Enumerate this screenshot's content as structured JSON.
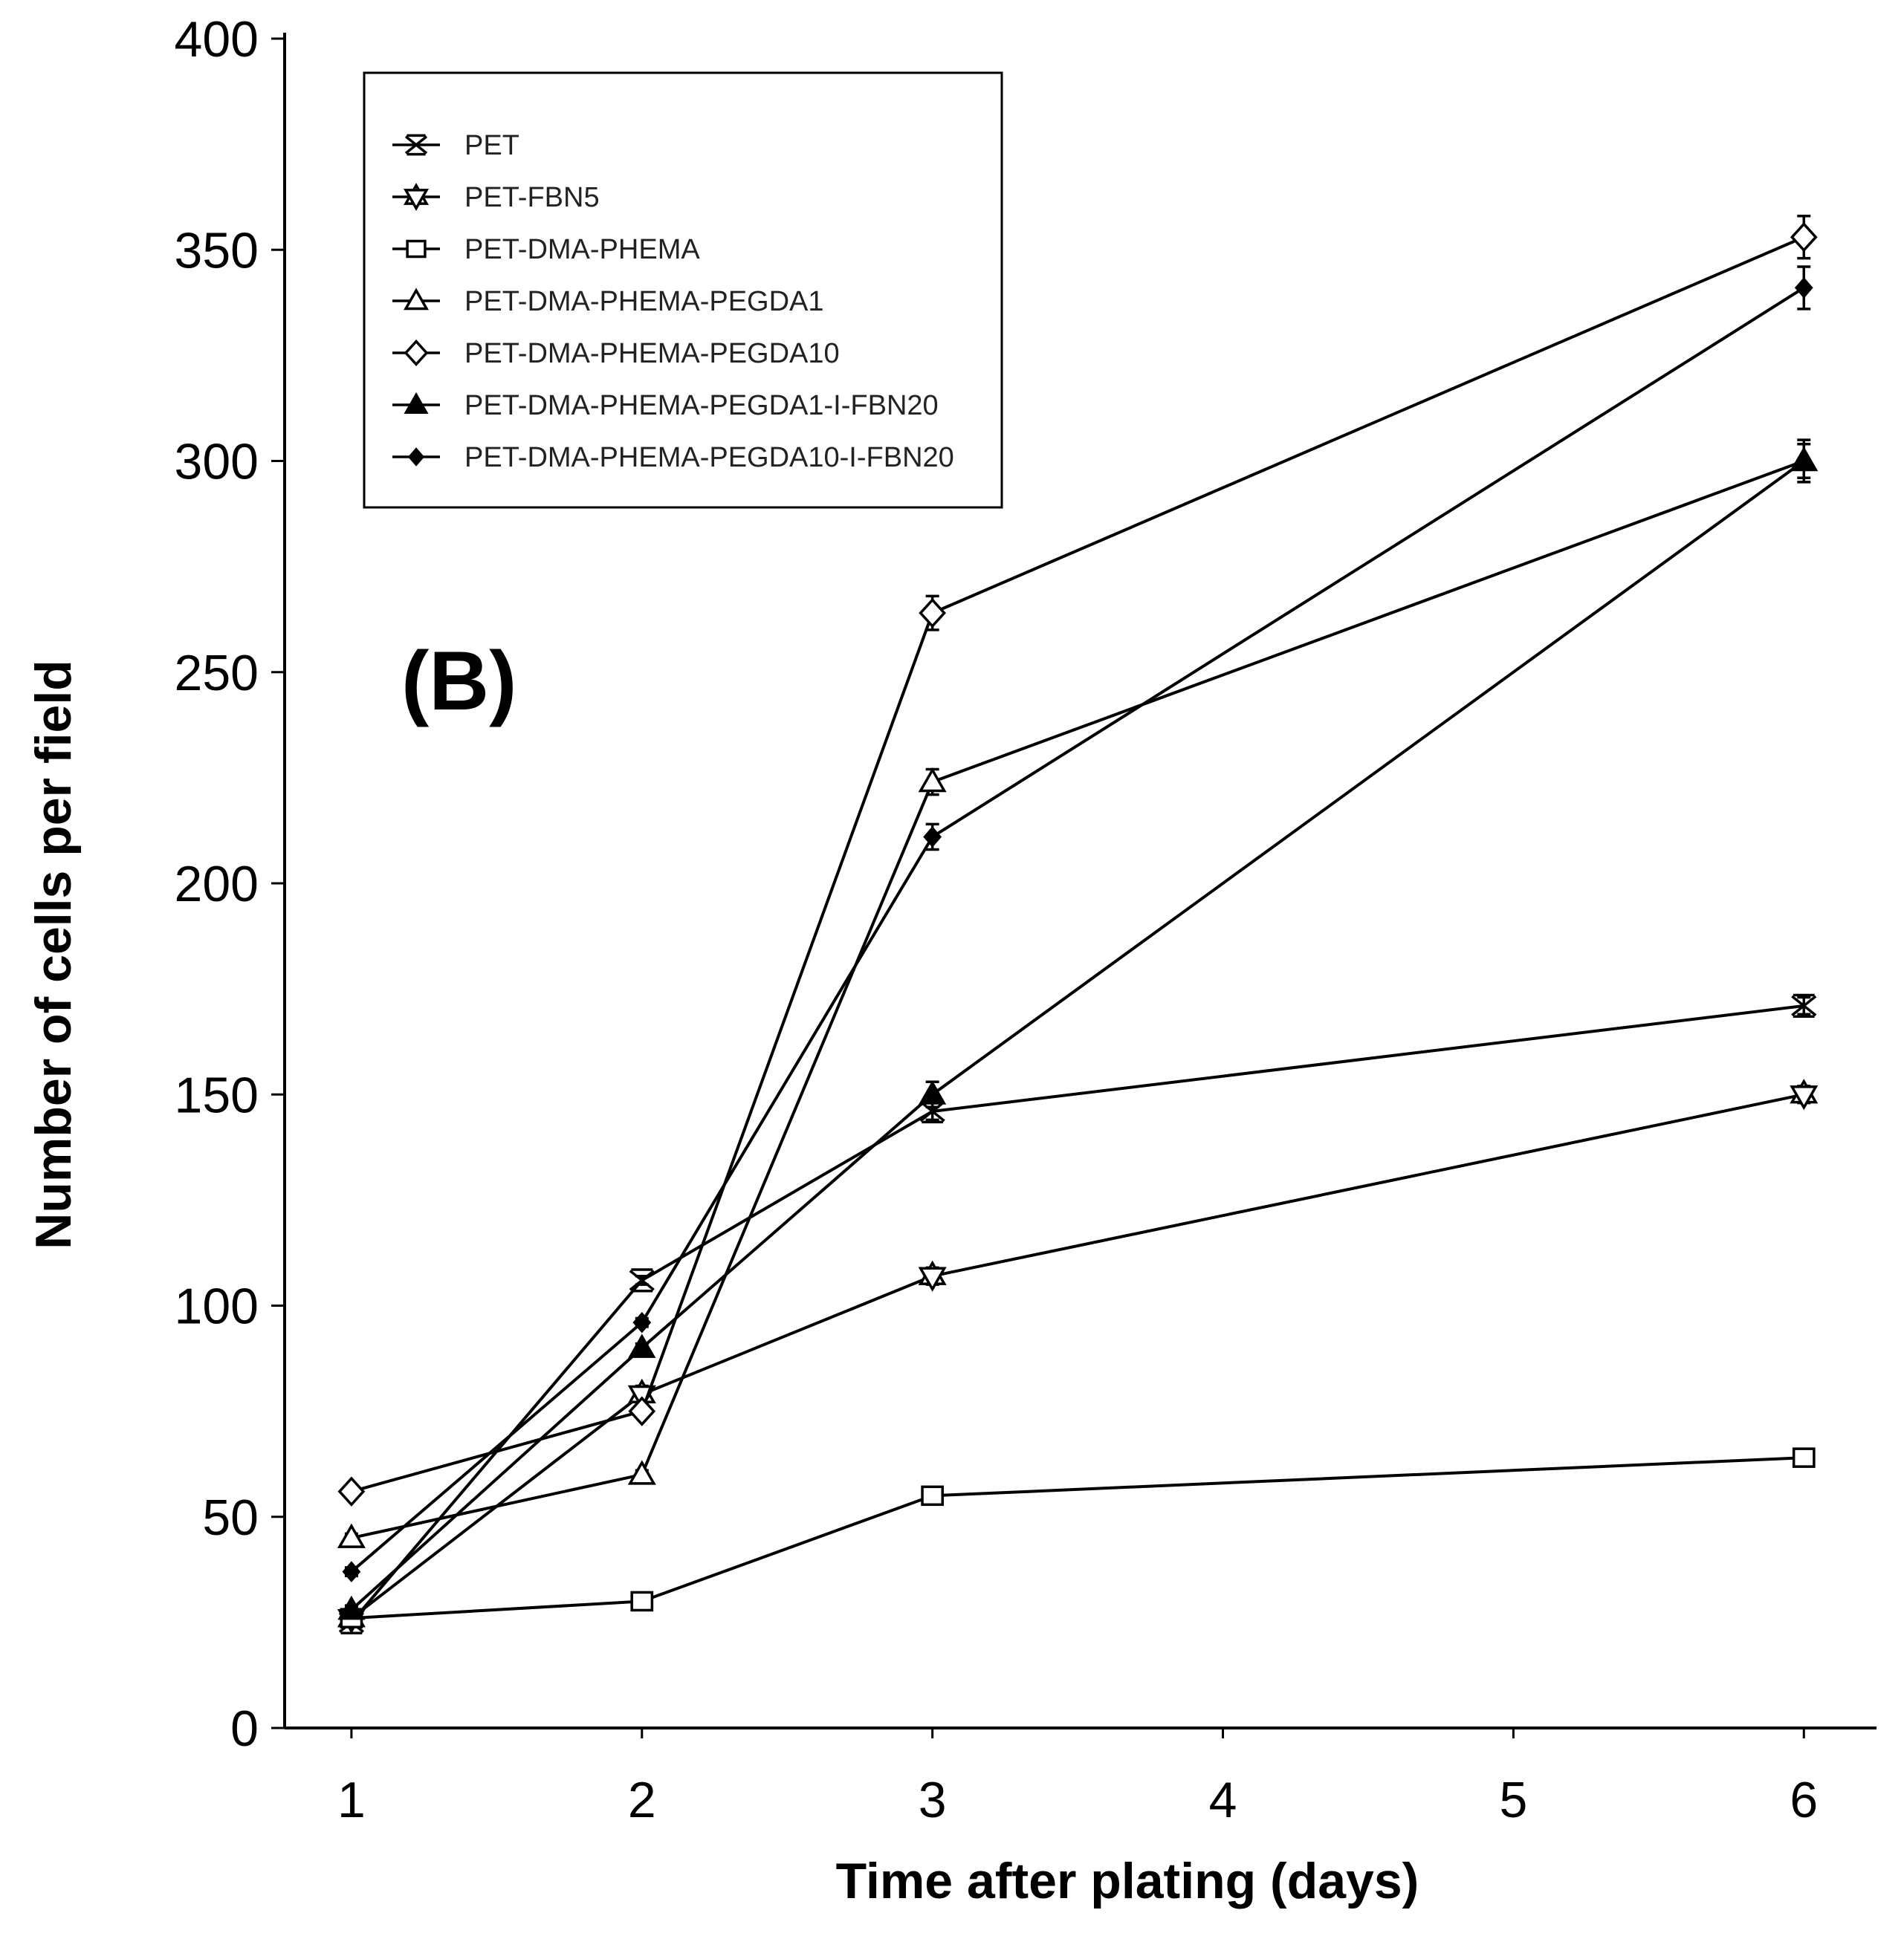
{
  "chart_data": {
    "type": "line",
    "panel_label": "(B)",
    "xlabel": "Time after plating (days)",
    "ylabel": "Number of cells per field",
    "xlim": [
      0.77,
      6.25
    ],
    "ylim": [
      0,
      400
    ],
    "xticks": [
      1,
      2,
      3,
      4,
      5,
      6
    ],
    "yticks": [
      0,
      50,
      100,
      150,
      200,
      250,
      300,
      350,
      400
    ],
    "legend_position": "top-left",
    "series": [
      {
        "name": "PET",
        "marker": "x",
        "x": [
          1,
          2,
          3,
          6
        ],
        "y": [
          25,
          106,
          146,
          171
        ],
        "err": [
          1,
          1,
          2,
          2
        ]
      },
      {
        "name": "PET-FBN5",
        "marker": "star",
        "x": [
          1,
          2,
          3,
          6
        ],
        "y": [
          26,
          79,
          107,
          150
        ],
        "err": [
          1,
          2,
          2,
          2
        ]
      },
      {
        "name": "PET-DMA-PHEMA",
        "marker": "square",
        "x": [
          1,
          2,
          3,
          6
        ],
        "y": [
          26,
          30,
          55,
          64
        ],
        "err": [
          1,
          1,
          1,
          1
        ]
      },
      {
        "name": "PET-DMA-PHEMA-PEGDA1",
        "marker": "triangle",
        "x": [
          1,
          2,
          3,
          6
        ],
        "y": [
          45,
          60,
          224,
          300
        ],
        "err": [
          1,
          1,
          3,
          4
        ]
      },
      {
        "name": "PET-DMA-PHEMA-PEGDA10",
        "marker": "diamond",
        "x": [
          1,
          2,
          3,
          6
        ],
        "y": [
          56,
          75,
          264,
          353
        ],
        "err": [
          1,
          1,
          4,
          5
        ]
      },
      {
        "name": "PET-DMA-PHEMA-PEGDA1-I-FBN20",
        "marker": "triangle-filled",
        "x": [
          1,
          2,
          3,
          6
        ],
        "y": [
          28,
          90,
          150,
          300
        ],
        "err": [
          1,
          1,
          3,
          5
        ]
      },
      {
        "name": "PET-DMA-PHEMA-PEGDA10-I-FBN20",
        "marker": "diamond-filled",
        "x": [
          1,
          2,
          3,
          6
        ],
        "y": [
          37,
          96,
          211,
          341
        ],
        "err": [
          1,
          1,
          3,
          5
        ]
      }
    ]
  }
}
